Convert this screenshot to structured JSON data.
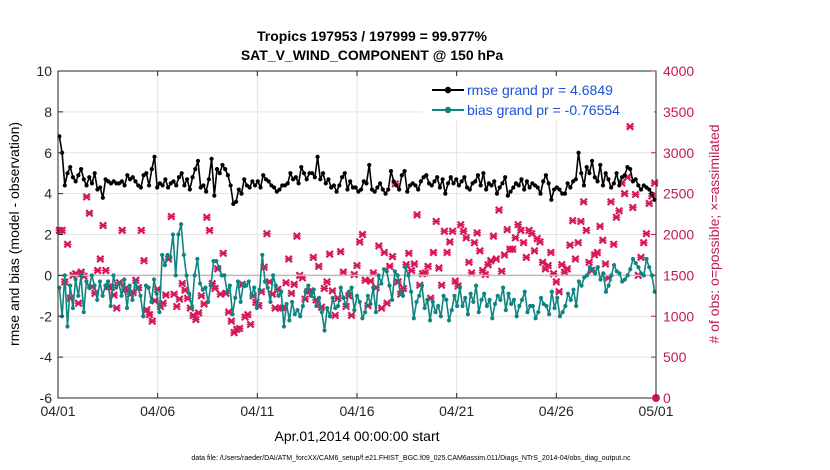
{
  "chart_data": {
    "type": "line",
    "title": "Tropics 197953 / 197999 = 99.977%",
    "subtitle": "SAT_V_WIND_COMPONENT @ 150 hPa",
    "xlabel": "Apr.01,2014 00:00:00 start",
    "ylabel_left": "rmse and bias (model - observation)",
    "ylabel_right": "# of obs: o=possible; ×=assimilated",
    "footnote": "data file: /Users/raeder/DAI/ATM_forcXX/CAM6_setup/f.e21.FHIST_BGC.f09_025.CAM6assim.011/Diags_NTrS_2014-04/obs_diag_output.nc",
    "x_ticks": [
      "04/01",
      "04/06",
      "04/11",
      "04/16",
      "04/21",
      "04/26",
      "05/01"
    ],
    "x_tick_days": [
      0,
      5,
      10,
      15,
      20,
      25,
      30
    ],
    "xlim": [
      0,
      30
    ],
    "ylim_left": [
      -6,
      10
    ],
    "ylim_right": [
      0,
      4000
    ],
    "y_ticks_left": [
      "-6",
      "-4",
      "-2",
      "0",
      "2",
      "4",
      "6",
      "8",
      "10"
    ],
    "y_ticks_right": [
      "0",
      "500",
      "1000",
      "1500",
      "2000",
      "2500",
      "3000",
      "3500",
      "4000"
    ],
    "grid": true,
    "legend_position": "top-right",
    "colors": {
      "rmse": "#000000",
      "bias": "#0f8582",
      "obs": "#d6185a",
      "right_axis": "#c2185b",
      "legend_text": "#1a4fd8",
      "zero_line": "#bdbdbd"
    },
    "series": [
      {
        "name": "rmse grand pr = 4.6849",
        "color": "#000000",
        "values": [
          6.8,
          6.0,
          4.4,
          5.0,
          5.3,
          4.8,
          4.6,
          4.9,
          5.2,
          4.7,
          4.4,
          4.8,
          4.5,
          5.0,
          4.2,
          4.3,
          3.8,
          4.7,
          4.6,
          4.5,
          4.6,
          4.5,
          4.5,
          4.6,
          4.4,
          4.9,
          4.7,
          4.8,
          4.6,
          4.4,
          4.3,
          4.9,
          5.0,
          4.4,
          5.2,
          5.8,
          4.3,
          4.5,
          4.4,
          4.7,
          4.3,
          4.5,
          4.6,
          4.4,
          4.8,
          5.0,
          4.4,
          4.7,
          4.2,
          4.8,
          5.2,
          5.6,
          4.3,
          4.4,
          4.1,
          4.7,
          5.7,
          3.9,
          5.2,
          5.0,
          5.4,
          5.2,
          4.9,
          4.4,
          3.5,
          3.6,
          4.2,
          4.0,
          4.7,
          4.4,
          4.3,
          4.6,
          4.4,
          4.6,
          4.3,
          4.9,
          4.7,
          4.6,
          4.4,
          4.3,
          4.1,
          4.2,
          4.4,
          4.4,
          4.5,
          5.0,
          4.7,
          4.8,
          4.5,
          5.3,
          5.0,
          4.7,
          5.0,
          5.0,
          4.8,
          5.8,
          4.7,
          5.0,
          4.5,
          4.7,
          4.3,
          4.4,
          4.1,
          4.4,
          4.8,
          5.0,
          4.2,
          4.6,
          4.3,
          4.3,
          4.1,
          4.2,
          4.6,
          4.5,
          5.4,
          4.2,
          4.1,
          4.3,
          4.5,
          4.2,
          4.0,
          4.2,
          5.1,
          4.6,
          4.4,
          4.2,
          4.9,
          5.1,
          4.1,
          4.4,
          4.5,
          4.4,
          4.2,
          4.6,
          4.8,
          4.9,
          4.5,
          4.4,
          4.6,
          4.8,
          4.3,
          4.7,
          4.0,
          4.5,
          4.8,
          4.5,
          4.7,
          4.4,
          4.6,
          4.8,
          4.3,
          4.2,
          4.5,
          4.6,
          4.9,
          4.4,
          5.0,
          4.2,
          4.5,
          4.4,
          4.6,
          4.0,
          4.3,
          4.5,
          4.8,
          3.9,
          4.1,
          4.3,
          4.5,
          4.4,
          4.7,
          4.2,
          4.6,
          4.3,
          4.5,
          4.4,
          4.3,
          4.0,
          4.6,
          4.9,
          4.5,
          3.7,
          4.2,
          4.3,
          4.2,
          4.0,
          4.0,
          4.5,
          4.3,
          4.6,
          4.7,
          6.0,
          5.0,
          4.4,
          5.3,
          5.0,
          5.6,
          4.8,
          4.6,
          5.4,
          4.4,
          5.0,
          4.7,
          4.3,
          4.5,
          5.0,
          4.4,
          4.8,
          4.9,
          5.3,
          5.2,
          4.6,
          4.7,
          4.4,
          4.2,
          4.4,
          4.3,
          4.2,
          4.0,
          3.7
        ]
      },
      {
        "name": "bias grand pr = -0.76554",
        "color": "#0f8582",
        "values": [
          -0.6,
          -2.0,
          0.0,
          -2.5,
          -0.5,
          -1.6,
          -0.2,
          -1.0,
          0.0,
          -1.8,
          -0.3,
          -0.6,
          0.0,
          -0.5,
          -1.2,
          -0.3,
          -1.0,
          -0.5,
          -0.3,
          -1.5,
          0.0,
          -0.6,
          -0.4,
          -1.0,
          -0.2,
          -1.6,
          -0.5,
          -1.2,
          -0.3,
          -0.6,
          -1.0,
          -2.0,
          -0.5,
          -0.6,
          -1.3,
          -0.2,
          -0.9,
          -1.8,
          1.0,
          0.5,
          1.0,
          0.9,
          2.0,
          0.0,
          2.0,
          2.5,
          1.0,
          0.0,
          -0.9,
          -1.6,
          0.0,
          0.8,
          -0.4,
          -0.7,
          -0.6,
          -1.3,
          -0.5,
          0.7,
          0.7,
          0.4,
          0.0,
          0.0,
          -0.8,
          -0.5,
          -1.9,
          -1.1,
          -0.3,
          -1.3,
          -0.4,
          -0.5,
          -0.3,
          -1.0,
          -0.6,
          -1.6,
          -0.7,
          1.0,
          -0.3,
          -0.6,
          -1.3,
          0.0,
          -0.5,
          -1.0,
          -0.8,
          -2.5,
          -1.4,
          -2.2,
          -1.3,
          -1.9,
          -1.7,
          -2.0,
          -1.5,
          -0.8,
          -0.5,
          -1.0,
          -0.7,
          -1.5,
          -1.1,
          -1.8,
          -2.7,
          -1.6,
          -2.0,
          -1.1,
          -1.6,
          -1.5,
          -0.6,
          -1.1,
          -1.5,
          -0.8,
          -0.6,
          -1.7,
          -1.0,
          -1.3,
          -2.1,
          -1.8,
          -1.0,
          -1.4,
          -0.6,
          -1.8,
          0.0,
          -0.4,
          0.3,
          0.2,
          -0.5,
          -1.2,
          0.2,
          0.0,
          -0.9,
          -1.0,
          0.4,
          0.0,
          -0.8,
          -2.1,
          -1.3,
          -1.0,
          -0.5,
          -1.6,
          -1.2,
          -2.2,
          -1.3,
          -1.8,
          -1.5,
          -2.0,
          -1.0,
          -1.2,
          -2.2,
          -1.7,
          -1.0,
          -1.5,
          -0.6,
          -1.5,
          -1.1,
          -1.9,
          -0.9,
          -1.3,
          -0.5,
          -1.8,
          -1.2,
          -0.9,
          -1.5,
          -1.2,
          -2.1,
          -1.4,
          -1.0,
          -1.2,
          -0.6,
          -1.7,
          -0.9,
          -1.4,
          -1.2,
          -2.0,
          -1.5,
          -1.2,
          -0.8,
          -1.8,
          -1.5,
          -1.5,
          -2.1,
          -1.8,
          -1.1,
          -1.4,
          -1.5,
          -1.9,
          -0.8,
          -1.6,
          -1.1,
          -2.0,
          -1.8,
          -1.5,
          -0.9,
          -1.2,
          -0.7,
          -1.5,
          -0.3,
          -0.5,
          -0.1,
          0.0,
          0.4,
          0.3,
          0.1,
          0.4,
          -0.2,
          0.1,
          -0.8,
          -0.5,
          0.0,
          0.5,
          0.2,
          0.1,
          -0.3,
          -0.2,
          0.0,
          0.3,
          0.8,
          0.6,
          0.4,
          0.1,
          0.0,
          0.8,
          0.4,
          0.0,
          -0.8
        ]
      }
    ],
    "obs_assimilated": [
      2050,
      2050,
      1420,
      1880,
      1220,
      1500,
      1520,
      1160,
      1540,
      1490,
      2460,
      2260,
      1360,
      1280,
      1560,
      1700,
      2110,
      1560,
      1360,
      1350,
      1260,
      1100,
      1410,
      2050,
      1330,
      1320,
      1270,
      1290,
      1440,
      1350,
      2050,
      1680,
      1080,
      1020,
      940,
      1190,
      1330,
      1120,
      1160,
      1260,
      1700,
      2220,
      1270,
      1120,
      1210,
      1400,
      1320,
      1220,
      1100,
      1010,
      960,
      1040,
      1250,
      1150,
      2210,
      2050,
      1400,
      1340,
      1580,
      1270,
      1770,
      1280,
      1050,
      940,
      800,
      840,
      850,
      1390,
      990,
      1020,
      900,
      1250,
      1170,
      1130,
      1300,
      1600,
      2010,
      1420,
      1270,
      1100,
      1330,
      1100,
      1100,
      1410,
      1700,
      1280,
      1390,
      1980,
      1500,
      1470,
      1210,
      1300,
      1310,
      1720,
      1200,
      1610,
      1110,
      1340,
      1420,
      1760,
      1310,
      1010,
      1220,
      1790,
      1540,
      1120,
      1250,
      1010,
      1510,
      1620,
      1910,
      2000,
      1440,
      1130,
      1430,
      1530,
      1350,
      1860,
      1100,
      1780,
      1160,
      1610,
      1730,
      2620,
      1420,
      1270,
      1340,
      1630,
      1770,
      1560,
      1640,
      2240,
      1380,
      1520,
      1530,
      1610,
      1220,
      1780,
      2160,
      1590,
      1380,
      2040,
      1780,
      1910,
      2040,
      1430,
      1370,
      2120,
      2040,
      1960,
      1660,
      1530,
      1900,
      2020,
      1800,
      1560,
      1510,
      1630,
      1680,
      1980,
      1700,
      2300,
      1550,
      1750,
      2060,
      1820,
      1820,
      1960,
      2120,
      2050,
      1900,
      1720,
      2050,
      2010,
      1800,
      1950,
      1910,
      1660,
      1580,
      1620,
      1780,
      1520,
      1420,
      1300,
      1630,
      1540,
      1580,
      1870,
      2170,
      1700,
      1900,
      2160,
      2400,
      2050,
      1660,
      1560,
      1750,
      1780,
      2100,
      1930,
      1640,
      1470,
      2400,
      1880,
      2210,
      2290,
      2630,
      2500,
      2700,
      3320,
      2330,
      2490,
      1500,
      1720,
      1900,
      2010,
      2380,
      2470,
      2630
    ]
  }
}
